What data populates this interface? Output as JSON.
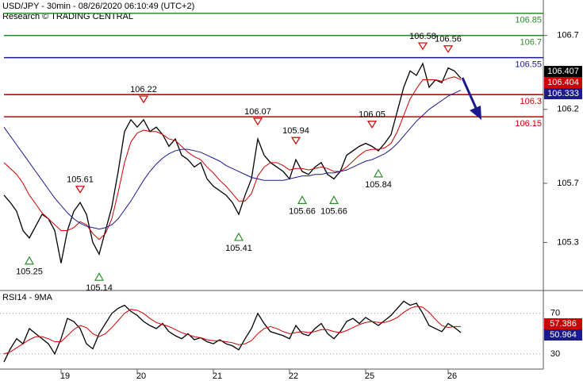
{
  "header": {
    "title": "USD/JPY - 30min - 08/26/2020 06:10:49 (UTC+2)",
    "subtitle": "Research © TRADING CENTRAL"
  },
  "chart_data": [
    {
      "type": "line",
      "categories": [
        null,
        null,
        null,
        null,
        null,
        null,
        null,
        null,
        null,
        "19",
        null,
        null,
        null,
        null,
        null,
        null,
        null,
        null,
        null,
        null,
        null,
        "20",
        null,
        null,
        null,
        null,
        null,
        null,
        null,
        null,
        null,
        null,
        null,
        "21",
        null,
        null,
        null,
        null,
        null,
        null,
        null,
        null,
        null,
        null,
        null,
        "22",
        null,
        null,
        null,
        null,
        null,
        null,
        null,
        null,
        null,
        null,
        null,
        "25",
        null,
        null,
        null,
        null,
        null,
        null,
        null,
        null,
        null,
        null,
        null,
        null,
        "26",
        null,
        null
      ],
      "series": [
        {
          "color": "#000000",
          "values": [
            105.62,
            105.57,
            105.51,
            105.38,
            105.33,
            105.41,
            105.49,
            105.46,
            105.38,
            105.16,
            105.38,
            105.51,
            105.57,
            105.49,
            105.3,
            105.22,
            105.38,
            105.54,
            105.78,
            106.05,
            106.13,
            106.08,
            106.13,
            106.05,
            106.08,
            106.03,
            105.95,
            106.0,
            105.89,
            105.86,
            105.81,
            105.84,
            105.73,
            105.68,
            105.65,
            105.62,
            105.57,
            105.49,
            105.62,
            105.73,
            106.0,
            105.89,
            105.84,
            105.81,
            105.78,
            105.73,
            105.86,
            105.78,
            105.76,
            105.81,
            105.84,
            105.76,
            105.73,
            105.78,
            105.89,
            105.92,
            105.95,
            105.97,
            105.95,
            105.92,
            105.97,
            106.03,
            106.19,
            106.35,
            106.46,
            106.43,
            106.51,
            106.35,
            106.4,
            106.38,
            106.48,
            106.46,
            106.41
          ]
        },
        {
          "color": "#cc0000",
          "values": [
            105.84,
            105.8,
            105.76,
            105.7,
            105.62,
            105.56,
            105.5,
            105.46,
            105.42,
            105.38,
            105.38,
            105.4,
            105.44,
            105.42,
            105.36,
            105.32,
            105.36,
            105.46,
            105.64,
            105.84,
            105.98,
            106.04,
            106.06,
            106.05,
            106.05,
            106.03,
            106.0,
            105.99,
            105.95,
            105.91,
            105.88,
            105.86,
            105.81,
            105.77,
            105.72,
            105.68,
            105.63,
            105.58,
            105.58,
            105.63,
            105.75,
            105.81,
            105.84,
            105.84,
            105.82,
            105.79,
            105.8,
            105.8,
            105.79,
            105.8,
            105.81,
            105.8,
            105.78,
            105.78,
            105.81,
            105.85,
            105.89,
            105.92,
            105.93,
            105.93,
            105.94,
            105.97,
            106.05,
            106.16,
            106.27,
            106.34,
            106.4,
            106.4,
            106.4,
            106.39,
            106.41,
            106.42,
            106.4
          ]
        },
        {
          "color": "#1a1a8c",
          "values": [
            106.08,
            106.02,
            105.96,
            105.9,
            105.84,
            105.78,
            105.72,
            105.66,
            105.6,
            105.55,
            105.5,
            105.46,
            105.43,
            105.41,
            105.4,
            105.39,
            105.4,
            105.42,
            105.46,
            105.52,
            105.58,
            105.65,
            105.72,
            105.78,
            105.83,
            105.87,
            105.9,
            105.92,
            105.93,
            105.93,
            105.92,
            105.91,
            105.89,
            105.87,
            105.85,
            105.82,
            105.8,
            105.78,
            105.76,
            105.74,
            105.73,
            105.72,
            105.72,
            105.72,
            105.72,
            105.73,
            105.74,
            105.75,
            105.75,
            105.76,
            105.76,
            105.77,
            105.77,
            105.78,
            105.79,
            105.81,
            105.83,
            105.85,
            105.86,
            105.88,
            105.9,
            105.93,
            105.97,
            106.02,
            106.07,
            106.12,
            106.16,
            106.2,
            106.23,
            106.26,
            106.29,
            106.31,
            106.33
          ]
        }
      ],
      "ylim": [
        104.98,
        106.94
      ],
      "yticks": [
        105.3,
        105.7,
        106.2,
        106.7
      ],
      "levels": [
        {
          "value": 106.85,
          "color": "#2e8b2e"
        },
        {
          "value": 106.7,
          "color": "#2e8b2e"
        },
        {
          "value": 106.55,
          "color": "#1a1a8c"
        },
        {
          "value": 106.3,
          "color": "#cc0000"
        },
        {
          "value": 106.15,
          "color": "#cc0000"
        }
      ],
      "markers": [
        {
          "value": 106.407,
          "color": "#000000"
        },
        {
          "value": 106.404,
          "color": "#cc0000"
        },
        {
          "value": 106.333,
          "color": "#1a1a8c"
        }
      ],
      "highs": [
        {
          "value": 106.58,
          "index": 66
        },
        {
          "value": 106.56,
          "index": 70
        },
        {
          "value": 106.22,
          "index": 22
        },
        {
          "value": 106.07,
          "index": 40
        },
        {
          "value": 106.05,
          "index": 58
        },
        {
          "value": 105.94,
          "index": 46
        },
        {
          "value": 105.61,
          "index": 12
        }
      ],
      "lows": [
        {
          "value": 105.84,
          "index": 59
        },
        {
          "value": 105.66,
          "index": 47
        },
        {
          "value": 105.66,
          "index": 52
        },
        {
          "value": 105.41,
          "index": 37
        },
        {
          "value": 105.25,
          "index": 4
        },
        {
          "value": 105.14,
          "index": 15
        }
      ]
    },
    {
      "type": "line",
      "title": "RSI14 - 9MA",
      "series": [
        {
          "color": "#000000",
          "values": [
            22,
            35,
            45,
            40,
            55,
            50,
            45,
            40,
            30,
            45,
            65,
            62,
            55,
            40,
            35,
            50,
            60,
            70,
            75,
            78,
            72,
            68,
            62,
            58,
            55,
            60,
            52,
            48,
            45,
            50,
            44,
            46,
            42,
            40,
            44,
            40,
            38,
            34,
            45,
            55,
            70,
            60,
            52,
            50,
            48,
            45,
            58,
            50,
            48,
            55,
            60,
            50,
            45,
            52,
            62,
            65,
            60,
            66,
            62,
            58,
            63,
            68,
            75,
            82,
            78,
            80,
            70,
            58,
            55,
            52,
            60,
            56,
            51
          ]
        },
        {
          "color": "#cc0000",
          "values": [
            30,
            32,
            36,
            40,
            44,
            47,
            47,
            45,
            42,
            42,
            48,
            54,
            58,
            56,
            50,
            47,
            50,
            56,
            63,
            70,
            74,
            73,
            70,
            65,
            61,
            59,
            57,
            54,
            51,
            49,
            47,
            46,
            44,
            43,
            43,
            42,
            41,
            39,
            40,
            43,
            50,
            55,
            57,
            55,
            52,
            50,
            51,
            52,
            51,
            52,
            54,
            54,
            52,
            51,
            53,
            56,
            59,
            61,
            62,
            61,
            61,
            63,
            66,
            71,
            75,
            77,
            76,
            71,
            64,
            58,
            56,
            57,
            57
          ]
        }
      ],
      "ylim": [
        15,
        91
      ],
      "yticks": [
        30,
        70
      ],
      "markers": [
        {
          "value": 57.386,
          "color": "#cc0000"
        },
        {
          "value": 50.964,
          "color": "#1a1a8c"
        }
      ]
    }
  ]
}
